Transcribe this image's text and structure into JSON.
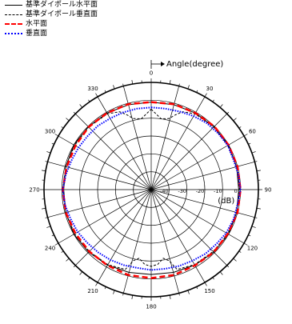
{
  "chart_data": {
    "type": "polar-line",
    "axis_title": "Angle(degree)",
    "radial_unit": "(dB)",
    "angle_ticks": [
      "0",
      "30",
      "60",
      "90",
      "120",
      "150",
      "180",
      "210",
      "240",
      "270",
      "300",
      "330"
    ],
    "angle_tick_values": [
      0,
      30,
      60,
      90,
      120,
      150,
      180,
      210,
      240,
      270,
      300,
      330
    ],
    "radial_tick_labels": [
      "-40",
      "-30",
      "-20",
      "-10",
      "0"
    ],
    "radial_range": [
      -50,
      10
    ],
    "radial_gridlines": [
      -40,
      -30,
      -20,
      -10,
      0,
      10
    ],
    "angle_grid_step": 15,
    "legend_position": "top-left",
    "series": [
      {
        "name": "基準ダイポール水平面",
        "style": "solid",
        "color": "#000000",
        "width": 1,
        "angles": [
          0,
          15,
          30,
          45,
          60,
          75,
          90,
          105,
          120,
          135,
          150,
          165,
          180,
          195,
          210,
          225,
          240,
          255,
          270,
          285,
          300,
          315,
          330,
          345
        ],
        "values": [
          -1,
          -0.8,
          -0.5,
          -0.3,
          0,
          -0.5,
          -1,
          -0.5,
          0,
          -0.5,
          -1.2,
          -2,
          -2.5,
          -2,
          -1.2,
          -0.5,
          0,
          -0.5,
          -1,
          -0.5,
          0,
          -0.3,
          -0.5,
          -0.8
        ]
      },
      {
        "name": "基準ダイポール垂直面",
        "style": "dashed",
        "color": "#000000",
        "width": 1,
        "angles": [
          0,
          8,
          14,
          18,
          22,
          30,
          45,
          60,
          75,
          90,
          105,
          120,
          135,
          150,
          162,
          166,
          170,
          175,
          180,
          185,
          190,
          194,
          198,
          210,
          225,
          240,
          255,
          270,
          285,
          300,
          315,
          330,
          338,
          342,
          346,
          352
        ],
        "values": [
          -5,
          -10,
          -9,
          -6,
          -3,
          -1,
          -0.5,
          -0.5,
          -0.5,
          -0.5,
          -0.5,
          -0.5,
          -1,
          -1.5,
          -3,
          -9,
          -11,
          -8,
          -7,
          -8,
          -11,
          -9,
          -3,
          -1.5,
          -1,
          -0.5,
          -0.5,
          -0.5,
          -0.5,
          -0.5,
          -0.5,
          -1,
          -3,
          -6,
          -9,
          -10
        ]
      },
      {
        "name": "水平面",
        "style": "dashed",
        "color": "#ff0000",
        "width": 2.5,
        "angles": [
          0,
          15,
          30,
          45,
          60,
          75,
          90,
          105,
          120,
          135,
          150,
          165,
          180,
          195,
          210,
          225,
          240,
          255,
          270,
          285,
          300,
          315,
          330,
          345
        ],
        "values": [
          -1,
          -0.5,
          -0.5,
          0,
          0,
          0,
          0,
          0,
          -0.5,
          -0.5,
          -1,
          -0.5,
          -0.5,
          -0.5,
          -1,
          -1,
          -1,
          -0.5,
          -0.5,
          -1,
          -1,
          -0.5,
          -0.5,
          -0.5
        ]
      },
      {
        "name": "垂直面",
        "style": "dotted",
        "color": "#0000ff",
        "width": 2,
        "angles": [
          0,
          10,
          20,
          30,
          40,
          50,
          60,
          70,
          80,
          90,
          100,
          110,
          120,
          130,
          140,
          150,
          160,
          170,
          180,
          190,
          200,
          210,
          220,
          230,
          240,
          250,
          260,
          270,
          280,
          290,
          300,
          310,
          320,
          330,
          340,
          350
        ],
        "values": [
          -4,
          -4,
          -3.5,
          -2.5,
          -1.5,
          -1,
          -0.5,
          -1,
          -0.5,
          0,
          -1,
          -1,
          -1.5,
          -2.5,
          -3,
          -4,
          -4.5,
          -5,
          -5,
          -5.5,
          -5,
          -4.5,
          -4,
          -3.5,
          -2.5,
          -2,
          -1,
          -0.5,
          -1.5,
          -2.5,
          -3,
          -3.5,
          -3.5,
          -4,
          -4,
          -4
        ]
      }
    ]
  }
}
